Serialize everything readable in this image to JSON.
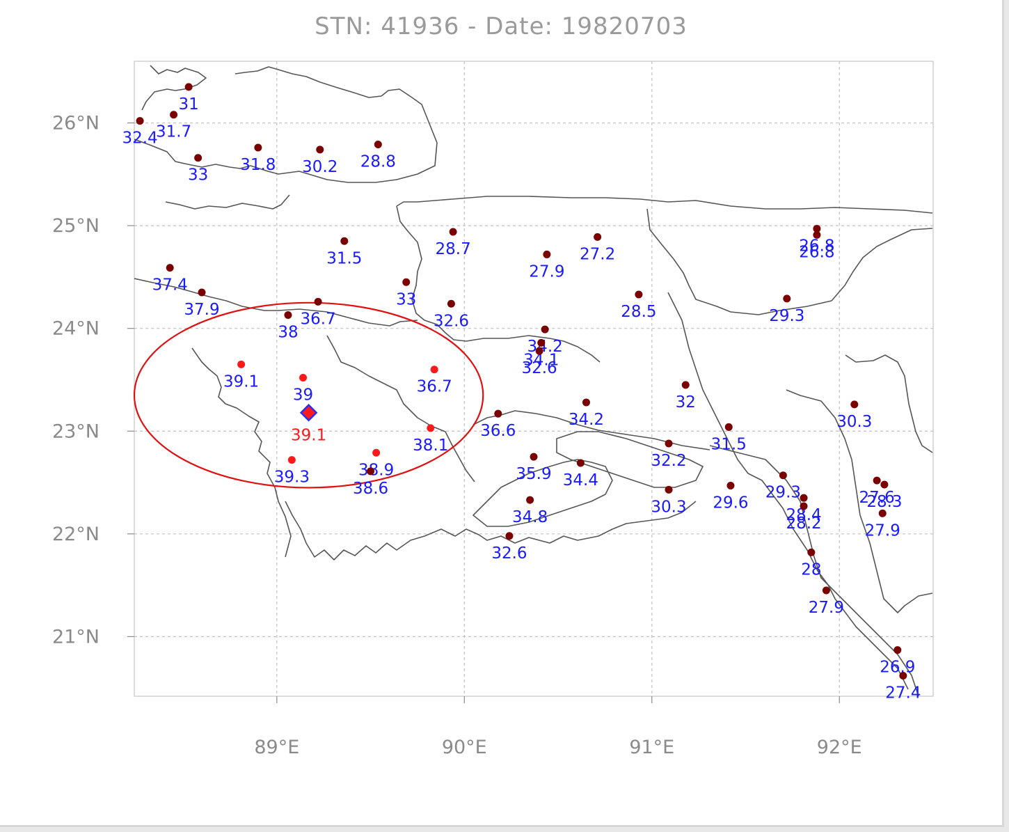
{
  "title": "STN: 41936 - Date: 19820703",
  "map": {
    "lon_range": [
      88.24,
      92.5
    ],
    "lat_range": [
      20.42,
      26.6
    ],
    "lat_ticks": [
      {
        "value": 26,
        "label": "26°N"
      },
      {
        "value": 25,
        "label": "25°N"
      },
      {
        "value": 24,
        "label": "24°N"
      },
      {
        "value": 23,
        "label": "23°N"
      },
      {
        "value": 22,
        "label": "22°N"
      },
      {
        "value": 21,
        "label": "21°N"
      }
    ],
    "lon_ticks": [
      {
        "value": 89,
        "label": "89°E"
      },
      {
        "value": 90,
        "label": "90°E"
      },
      {
        "value": 91,
        "label": "91°E"
      },
      {
        "value": 92,
        "label": "92°E"
      }
    ],
    "colors": {
      "station_dot": "#7a0000",
      "nearby_dot": "#ff1a1a",
      "label": "#1a1aff",
      "target_label": "#ff1a1a",
      "target_marker_fill": "#ff1a1a",
      "target_marker_stroke": "#2a2aff",
      "circle": "#e01010",
      "border": "#555555",
      "grid": "#c0c0c0"
    },
    "target_station": {
      "lon": 89.17,
      "lat": 23.18,
      "value": "39.1"
    },
    "search_circle": {
      "center_lon": 89.17,
      "center_lat": 23.35,
      "radius_lon": 0.93,
      "radius_lat": 0.9
    },
    "stations": [
      {
        "lon": 88.53,
        "lat": 26.35,
        "value": "31",
        "kind": "far"
      },
      {
        "lon": 88.45,
        "lat": 26.08,
        "value": "31.7",
        "kind": "far"
      },
      {
        "lon": 88.27,
        "lat": 26.02,
        "value": "32.4",
        "kind": "far"
      },
      {
        "lon": 88.58,
        "lat": 25.66,
        "value": "33",
        "kind": "far"
      },
      {
        "lon": 88.9,
        "lat": 25.76,
        "value": "31.8",
        "kind": "far"
      },
      {
        "lon": 89.23,
        "lat": 25.74,
        "value": "30.2",
        "kind": "far"
      },
      {
        "lon": 89.54,
        "lat": 25.79,
        "value": "28.8",
        "kind": "far"
      },
      {
        "lon": 89.36,
        "lat": 24.85,
        "value": "31.5",
        "kind": "far"
      },
      {
        "lon": 89.94,
        "lat": 24.94,
        "value": "28.7",
        "kind": "far"
      },
      {
        "lon": 88.43,
        "lat": 24.59,
        "value": "37.4",
        "kind": "far"
      },
      {
        "lon": 88.6,
        "lat": 24.35,
        "value": "37.9",
        "kind": "far"
      },
      {
        "lon": 89.06,
        "lat": 24.13,
        "value": "38",
        "kind": "far"
      },
      {
        "lon": 89.22,
        "lat": 24.26,
        "value": "36.7",
        "kind": "far"
      },
      {
        "lon": 89.69,
        "lat": 24.45,
        "value": "33",
        "kind": "far"
      },
      {
        "lon": 89.93,
        "lat": 24.24,
        "value": "32.6",
        "kind": "far"
      },
      {
        "lon": 90.71,
        "lat": 24.89,
        "value": "27.2",
        "kind": "far"
      },
      {
        "lon": 90.44,
        "lat": 24.72,
        "value": "27.9",
        "kind": "far"
      },
      {
        "lon": 90.93,
        "lat": 24.33,
        "value": "28.5",
        "kind": "far"
      },
      {
        "lon": 91.88,
        "lat": 24.97,
        "value": "26.8",
        "kind": "far"
      },
      {
        "lon": 91.88,
        "lat": 24.91,
        "value": "26.8",
        "kind": "far"
      },
      {
        "lon": 91.72,
        "lat": 24.29,
        "value": "29.3",
        "kind": "far"
      },
      {
        "lon": 90.43,
        "lat": 23.99,
        "value": "34.2",
        "kind": "far"
      },
      {
        "lon": 90.41,
        "lat": 23.86,
        "value": "34.1",
        "kind": "far"
      },
      {
        "lon": 90.4,
        "lat": 23.78,
        "value": "32.6",
        "kind": "far"
      },
      {
        "lon": 88.81,
        "lat": 23.65,
        "value": "39.1",
        "kind": "near"
      },
      {
        "lon": 89.14,
        "lat": 23.52,
        "value": "39",
        "kind": "near"
      },
      {
        "lon": 89.84,
        "lat": 23.6,
        "value": "36.7",
        "kind": "near"
      },
      {
        "lon": 89.82,
        "lat": 23.03,
        "value": "38.1",
        "kind": "near"
      },
      {
        "lon": 89.08,
        "lat": 22.72,
        "value": "39.3",
        "kind": "near"
      },
      {
        "lon": 89.53,
        "lat": 22.79,
        "value": "38.9",
        "kind": "near"
      },
      {
        "lon": 89.5,
        "lat": 22.61,
        "value": "38.6",
        "kind": "far"
      },
      {
        "lon": 90.18,
        "lat": 23.17,
        "value": "36.6",
        "kind": "far"
      },
      {
        "lon": 90.65,
        "lat": 23.28,
        "value": "34.2",
        "kind": "far"
      },
      {
        "lon": 91.18,
        "lat": 23.45,
        "value": "32",
        "kind": "far"
      },
      {
        "lon": 91.09,
        "lat": 22.88,
        "value": "32.2",
        "kind": "far"
      },
      {
        "lon": 91.41,
        "lat": 23.04,
        "value": "31.5",
        "kind": "far"
      },
      {
        "lon": 92.08,
        "lat": 23.26,
        "value": "30.3",
        "kind": "far"
      },
      {
        "lon": 90.37,
        "lat": 22.75,
        "value": "35.9",
        "kind": "far"
      },
      {
        "lon": 90.62,
        "lat": 22.69,
        "value": "34.4",
        "kind": "far"
      },
      {
        "lon": 90.35,
        "lat": 22.33,
        "value": "34.8",
        "kind": "far"
      },
      {
        "lon": 90.24,
        "lat": 21.98,
        "value": "32.6",
        "kind": "far"
      },
      {
        "lon": 91.09,
        "lat": 22.43,
        "value": "30.3",
        "kind": "far"
      },
      {
        "lon": 91.42,
        "lat": 22.47,
        "value": "29.6",
        "kind": "far"
      },
      {
        "lon": 91.7,
        "lat": 22.57,
        "value": "29.3",
        "kind": "far"
      },
      {
        "lon": 91.81,
        "lat": 22.35,
        "value": "28.4",
        "kind": "far"
      },
      {
        "lon": 91.81,
        "lat": 22.27,
        "value": "28.2",
        "kind": "far"
      },
      {
        "lon": 91.85,
        "lat": 21.82,
        "value": "28",
        "kind": "far"
      },
      {
        "lon": 91.93,
        "lat": 21.45,
        "value": "27.9",
        "kind": "far"
      },
      {
        "lon": 92.2,
        "lat": 22.52,
        "value": "27.6",
        "kind": "far"
      },
      {
        "lon": 92.24,
        "lat": 22.48,
        "value": "28.3",
        "kind": "far"
      },
      {
        "lon": 92.23,
        "lat": 22.2,
        "value": "27.9",
        "kind": "far"
      },
      {
        "lon": 92.31,
        "lat": 20.87,
        "value": "26.9",
        "kind": "far"
      },
      {
        "lon": 92.34,
        "lat": 20.62,
        "value": "27.4",
        "kind": "far"
      }
    ]
  }
}
